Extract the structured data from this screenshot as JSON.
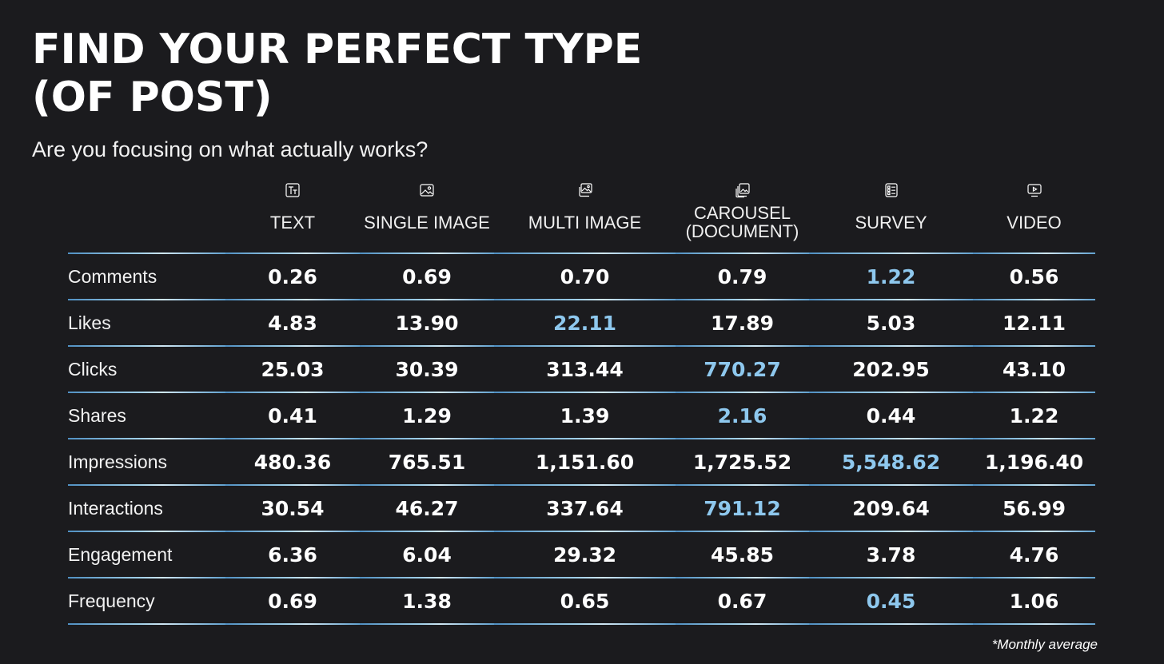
{
  "title_lines": [
    "FIND YOUR PERFECT TYPE",
    "(OF POST)"
  ],
  "subtitle": "Are you focusing on what actually works?",
  "note": "*Monthly average",
  "colors": {
    "background": "#1b1b1e",
    "text": "#ffffff",
    "highlight": "#8ec8ee",
    "divider": "#6aaad6"
  },
  "columns": [
    {
      "label": "TEXT",
      "icon": "text-format-icon"
    },
    {
      "label": "SINGLE IMAGE",
      "icon": "image-icon"
    },
    {
      "label": "MULTI IMAGE",
      "icon": "multi-image-icon"
    },
    {
      "label": "CAROUSEL\n(DOCUMENT)",
      "icon": "carousel-icon"
    },
    {
      "label": "SURVEY",
      "icon": "survey-icon"
    },
    {
      "label": "VIDEO",
      "icon": "video-icon"
    }
  ],
  "chart_data": {
    "type": "table",
    "columns": [
      "TEXT",
      "SINGLE IMAGE",
      "MULTI IMAGE",
      "CAROUSEL (DOCUMENT)",
      "SURVEY",
      "VIDEO"
    ],
    "rows": [
      {
        "label": "Comments",
        "values": [
          "0.26",
          "0.69",
          "0.70",
          "0.79",
          "1.22",
          "0.56"
        ],
        "highlight_index": 4
      },
      {
        "label": "Likes",
        "values": [
          "4.83",
          "13.90",
          "22.11",
          "17.89",
          "5.03",
          "12.11"
        ],
        "highlight_index": 2
      },
      {
        "label": "Clicks",
        "values": [
          "25.03",
          "30.39",
          "313.44",
          "770.27",
          "202.95",
          "43.10"
        ],
        "highlight_index": 3
      },
      {
        "label": "Shares",
        "values": [
          "0.41",
          "1.29",
          "1.39",
          "2.16",
          "0.44",
          "1.22"
        ],
        "highlight_index": 3
      },
      {
        "label": "Impressions",
        "values": [
          "480.36",
          "765.51",
          "1,151.60",
          "1,725.52",
          "5,548.62",
          "1,196.40"
        ],
        "highlight_index": 4
      },
      {
        "label": "Interactions",
        "values": [
          "30.54",
          "46.27",
          "337.64",
          "791.12",
          "209.64",
          "56.99"
        ],
        "highlight_index": 3
      },
      {
        "label": "Engagement",
        "values": [
          "6.36",
          "6.04",
          "29.32",
          "45.85",
          "3.78",
          "4.76"
        ],
        "highlight_index": -1
      },
      {
        "label": "Frequency",
        "values": [
          "0.69",
          "1.38",
          "0.65",
          "0.67",
          "0.45",
          "1.06"
        ],
        "highlight_index": 4
      }
    ]
  }
}
